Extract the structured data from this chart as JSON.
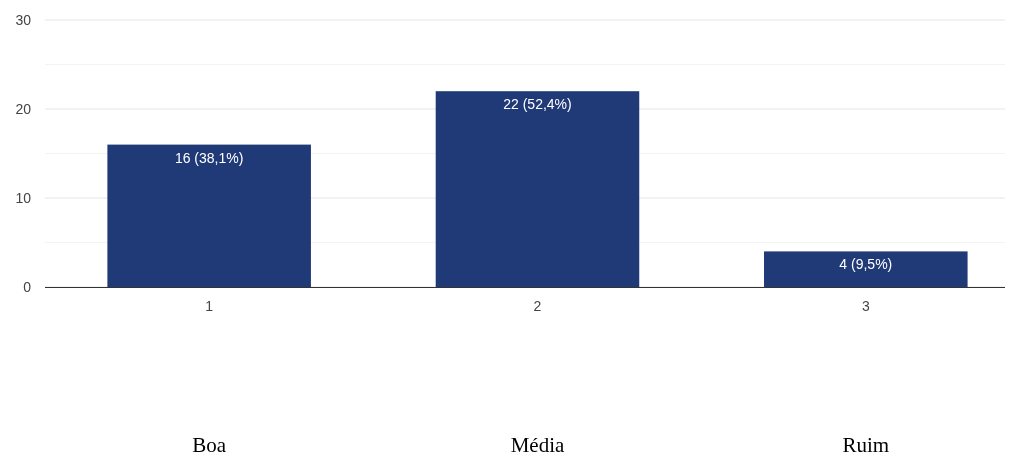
{
  "chart_data": {
    "type": "bar",
    "categories": [
      "1",
      "2",
      "3"
    ],
    "values": [
      16,
      22,
      4
    ],
    "color": "#203a78",
    "value_labels": [
      "16 (38,1%)",
      "22 (52,4%)",
      "4 (9,5%)"
    ],
    "ylim": [
      0,
      30
    ],
    "yticks": [
      0,
      {
        "value": 5,
        "label": null
      },
      10,
      {
        "value": 15,
        "label": null
      },
      20,
      {
        "value": 25,
        "label": null
      },
      30
    ],
    "grid": "y",
    "annotations": [
      "Boa",
      "Média",
      "Ruim"
    ]
  }
}
